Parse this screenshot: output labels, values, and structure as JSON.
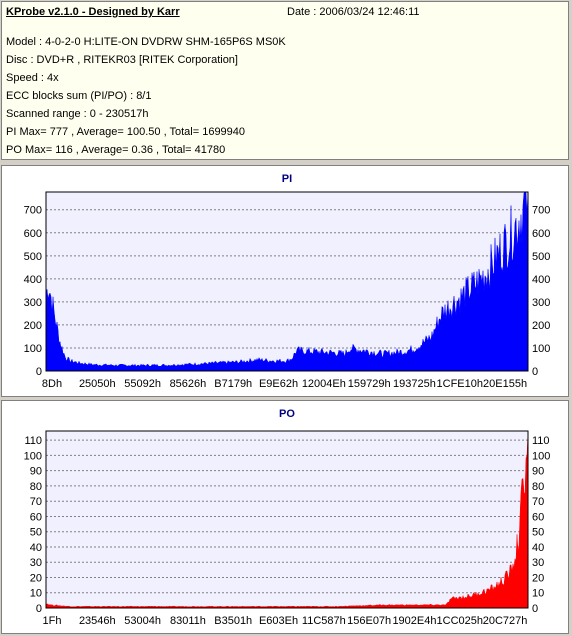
{
  "header": {
    "app_title": "KProbe v2.1.0 - Designed by Karr",
    "date": "Date : 2006/03/24 12:46:11",
    "lines": [
      "Model : 4-0-2-0 H:LITE-ON DVDRW SHM-165P6S MS0K",
      "Disc : DVD+R , RITEKR03 [RITEK Corporation]",
      "Speed : 4x",
      "ECC blocks sum (PI/PO) : 8/1",
      "Scanned range : 0 - 230517h",
      "PI Max= 777 , Average= 100.50 , Total= 1699940",
      "PO Max= 116 , Average= 0.36 , Total= 41780"
    ]
  },
  "colors": {
    "pi": "#0000ff",
    "po": "#ff0000",
    "plot_bg": "#f0f0ff",
    "title": "#000080"
  },
  "chart_data": [
    {
      "type": "area",
      "title": "PI",
      "ylim": [
        0,
        777
      ],
      "yticks": [
        0,
        100,
        200,
        300,
        400,
        500,
        600,
        700
      ],
      "xtick_labels": [
        "8Dh",
        "25050h",
        "55092h",
        "85626h",
        "B7179h",
        "E9E62h",
        "12004Eh",
        "159729h",
        "193725h",
        "1CFE10h",
        "20E155h"
      ],
      "x": [
        0,
        0.005,
        0.01,
        0.02,
        0.03,
        0.04,
        0.05,
        0.07,
        0.1,
        0.15,
        0.2,
        0.25,
        0.3,
        0.35,
        0.4,
        0.43,
        0.44,
        0.47,
        0.5,
        0.51,
        0.52,
        0.56,
        0.6,
        0.62,
        0.63,
        0.66,
        0.7,
        0.74,
        0.76,
        0.78,
        0.8,
        0.82,
        0.84,
        0.86,
        0.88,
        0.9,
        0.92,
        0.94,
        0.96,
        0.98,
        1.0
      ],
      "values": [
        320,
        390,
        330,
        220,
        120,
        60,
        45,
        35,
        28,
        25,
        25,
        26,
        30,
        35,
        40,
        48,
        50,
        45,
        45,
        55,
        90,
        85,
        80,
        75,
        100,
        90,
        75,
        85,
        95,
        120,
        150,
        250,
        290,
        320,
        360,
        400,
        450,
        520,
        580,
        660,
        760
      ]
    },
    {
      "type": "area",
      "title": "PO",
      "ylim": [
        0,
        116
      ],
      "yticks": [
        0,
        10,
        20,
        30,
        40,
        50,
        60,
        70,
        80,
        90,
        100,
        110
      ],
      "xtick_labels": [
        "1Fh",
        "23546h",
        "53004h",
        "83011h",
        "B3501h",
        "E603Eh",
        "11C587h",
        "156E07h",
        "1902E4h",
        "1CC025h",
        "20C727h"
      ],
      "x": [
        0,
        0.01,
        0.05,
        0.1,
        0.2,
        0.3,
        0.4,
        0.5,
        0.6,
        0.7,
        0.75,
        0.8,
        0.83,
        0.84,
        0.86,
        0.88,
        0.9,
        0.92,
        0.94,
        0.96,
        0.97,
        0.98,
        0.99,
        1.0
      ],
      "values": [
        3,
        2,
        1,
        1,
        1,
        1,
        1,
        1,
        1,
        2,
        2,
        2,
        2,
        6,
        7,
        8,
        10,
        12,
        16,
        22,
        30,
        45,
        80,
        116
      ]
    }
  ]
}
